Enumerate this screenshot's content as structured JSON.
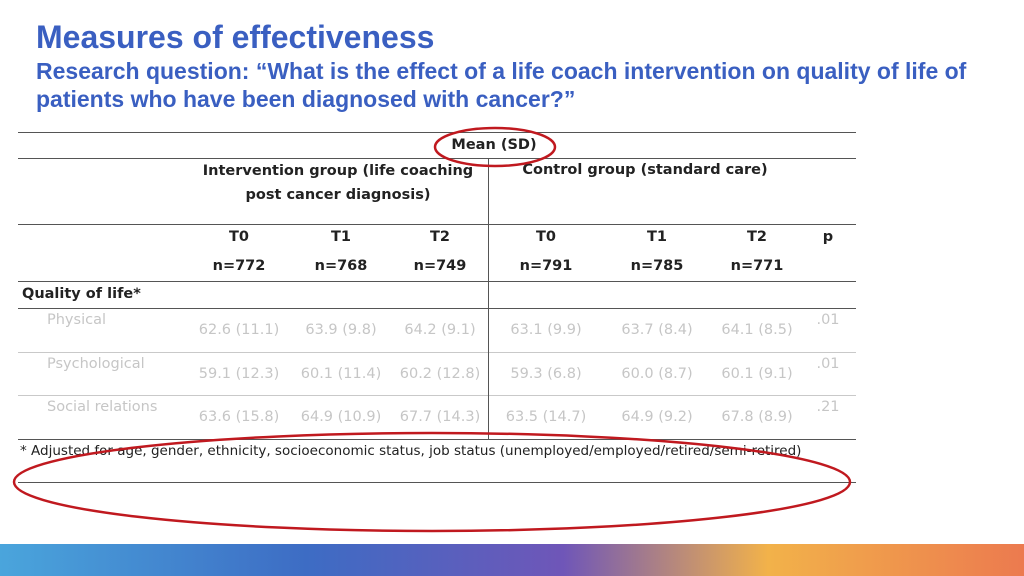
{
  "slide": {
    "title": "Measures of effectiveness",
    "subtitle": "Research question: “What is the effect of a life coach intervention on quality of life of patients who have been diagnosed with cancer?”"
  },
  "table": {
    "mean_sd_label": "Mean (SD)",
    "intervention_group": "Intervention group (life coaching post cancer diagnosis)",
    "control_group": "Control group (standard care)",
    "time_headers": [
      "T0",
      "T1",
      "T2",
      "T0",
      "T1",
      "T2"
    ],
    "p_header": "p",
    "n_values": [
      "n=772",
      "n=768",
      "n=749",
      "n=791",
      "n=785",
      "n=771"
    ],
    "section_label": "Quality of life*",
    "rows": [
      {
        "label": "Physical",
        "values": [
          "62.6 (11.1)",
          "63.9 (9.8)",
          "64.2 (9.1)",
          "63.1 (9.9)",
          "63.7 (8.4)",
          "64.1 (8.5)"
        ],
        "p": ".01"
      },
      {
        "label": "Psychological",
        "values": [
          "59.1 (12.3)",
          "60.1 (11.4)",
          "60.2 (12.8)",
          "59.3 (6.8)",
          "60.0 (8.7)",
          "60.1 (9.1)"
        ],
        "p": ".01"
      },
      {
        "label": "Social relations",
        "values": [
          "63.6 (15.8)",
          "64.9 (10.9)",
          "67.7 (14.3)",
          "63.5 (14.7)",
          "64.9 (9.2)",
          "67.8 (8.9)"
        ],
        "p": ".21"
      }
    ],
    "footnote": "* Adjusted for age, gender, ethnicity, socioeconomic status, job status (unemployed/employed/retired/semi-retired)"
  },
  "colors": {
    "title": "#3a5fc1",
    "annotation": "#c0191f"
  }
}
